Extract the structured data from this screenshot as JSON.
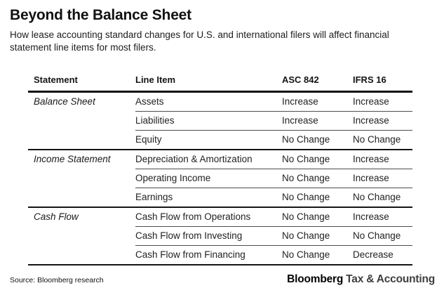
{
  "header": {
    "title": "Beyond the Balance Sheet",
    "subtitle": "How lease accounting standard changes for U.S. and international filers will affect financial statement line items for most filers."
  },
  "chart_data": {
    "type": "table",
    "title": "Beyond the Balance Sheet",
    "columns": [
      "Statement",
      "Line Item",
      "ASC 842",
      "IFRS 16"
    ],
    "groups": [
      {
        "statement": "Balance Sheet",
        "rows": [
          {
            "line_item": "Assets",
            "asc_842": "Increase",
            "ifrs_16": "Increase"
          },
          {
            "line_item": "Liabilities",
            "asc_842": "Increase",
            "ifrs_16": "Increase"
          },
          {
            "line_item": "Equity",
            "asc_842": "No Change",
            "ifrs_16": "No Change"
          }
        ]
      },
      {
        "statement": "Income Statement",
        "rows": [
          {
            "line_item": "Depreciation & Amortization",
            "asc_842": "No Change",
            "ifrs_16": "Increase"
          },
          {
            "line_item": "Operating Income",
            "asc_842": "No Change",
            "ifrs_16": "Increase"
          },
          {
            "line_item": "Earnings",
            "asc_842": "No Change",
            "ifrs_16": "No Change"
          }
        ]
      },
      {
        "statement": "Cash Flow",
        "rows": [
          {
            "line_item": "Cash Flow from Operations",
            "asc_842": "No Change",
            "ifrs_16": "Increase"
          },
          {
            "line_item": "Cash Flow from Investing",
            "asc_842": "No Change",
            "ifrs_16": "No Change"
          },
          {
            "line_item": "Cash Flow from Financing",
            "asc_842": "No Change",
            "ifrs_16": "Decrease"
          }
        ]
      }
    ],
    "layout": {
      "grid": "horizontal rules only",
      "heavy_rule_color": "#111111",
      "light_rule_color": "#4d4d4d"
    }
  },
  "footer": {
    "source": "Source: Bloomberg research",
    "brand_main": "Bloomberg",
    "brand_suffix": "Tax & Accounting"
  }
}
